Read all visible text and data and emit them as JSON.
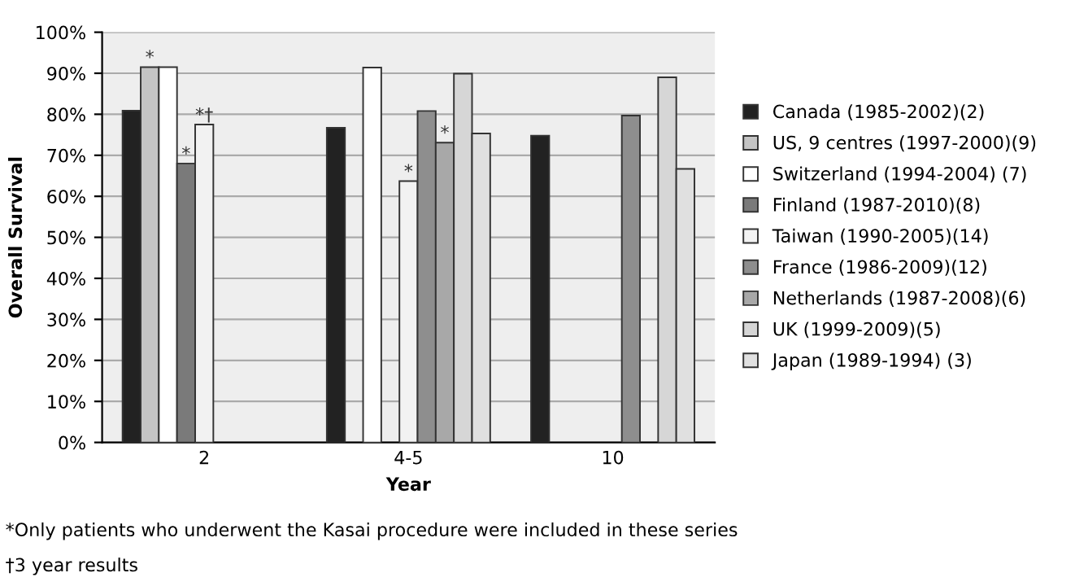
{
  "chart_data": {
    "type": "bar",
    "xlabel": "Year",
    "ylabel": "Overall Survival",
    "categories": [
      "2",
      "4-5",
      "10"
    ],
    "series": [
      {
        "name": "Canada (1985-2002)(2)",
        "color": "#222222",
        "values": [
          80.9,
          76.7,
          74.8
        ]
      },
      {
        "name": "US, 9 centres (1997-2000)(9)",
        "color": "#c4c4c4",
        "values": [
          91.5,
          null,
          null
        ],
        "value_labels": [
          "*",
          null,
          null
        ]
      },
      {
        "name": "Switzerland (1994-2004) (7)",
        "color": "#ffffff",
        "values": [
          91.5,
          91.4,
          null
        ]
      },
      {
        "name": "Finland (1987-2010)(8)",
        "color": "#7a7a7a",
        "values": [
          68,
          null,
          null
        ],
        "value_labels": [
          "*",
          null,
          null
        ]
      },
      {
        "name": "Taiwan (1990-2005)(14)",
        "color": "#f2f2f2",
        "values": [
          77.5,
          63.7,
          null
        ],
        "value_labels": [
          "*†",
          "*",
          null
        ]
      },
      {
        "name": "France (1986-2009)(12)",
        "color": "#8e8e8e",
        "values": [
          null,
          80.8,
          79.7
        ]
      },
      {
        "name": "Netherlands (1987-2008)(6)",
        "color": "#a8a8a8",
        "values": [
          null,
          73.1,
          null
        ],
        "value_labels": [
          null,
          "*",
          null
        ]
      },
      {
        "name": "UK (1999-2009)(5)",
        "color": "#d6d6d6",
        "values": [
          null,
          89.9,
          89
        ]
      },
      {
        "name": "Japan (1989-1994) (3)",
        "color": "#e0e0e0",
        "values": [
          null,
          75.3,
          66.7
        ]
      }
    ],
    "ylim": [
      0,
      100
    ],
    "yticks": [
      {
        "value": 0,
        "label": "0%"
      },
      {
        "value": 10,
        "label": "10%"
      },
      {
        "value": 20,
        "label": "20%"
      },
      {
        "value": 30,
        "label": "30%"
      },
      {
        "value": 40,
        "label": "40%"
      },
      {
        "value": 50,
        "label": "50%"
      },
      {
        "value": 60,
        "label": "60%"
      },
      {
        "value": 70,
        "label": "70%"
      },
      {
        "value": 80,
        "label": "80%"
      },
      {
        "value": 90,
        "label": "90%"
      },
      {
        "value": 100,
        "label": "100%"
      }
    ],
    "grid": "y",
    "legend": "right",
    "annotations": [
      "*Only patients who underwent the Kasai procedure were included in these series",
      "†3 year results"
    ]
  }
}
